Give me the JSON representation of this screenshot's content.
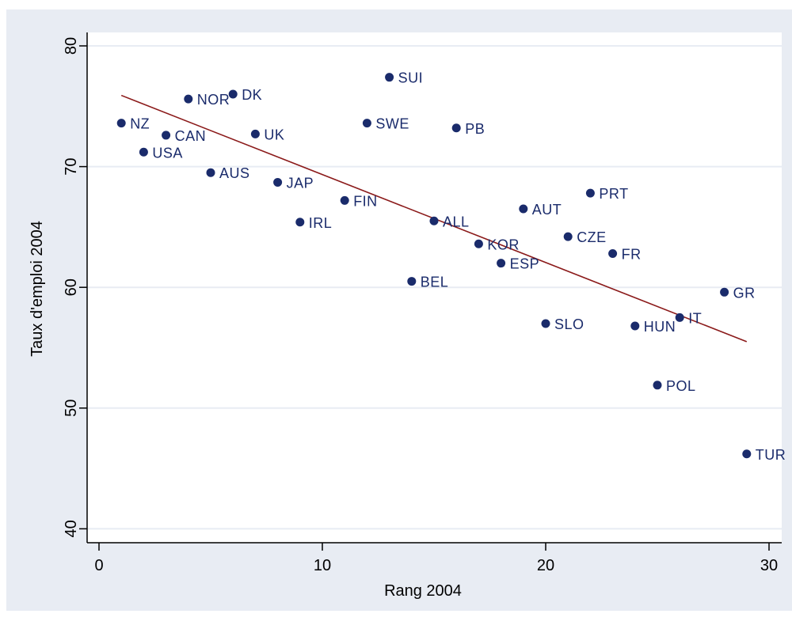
{
  "chart_data": {
    "type": "scatter",
    "title": "",
    "xlabel": "Rang 2004",
    "ylabel": "Taux d'emploi 2004",
    "xlim": [
      -0.5,
      30.5
    ],
    "ylim": [
      39,
      81
    ],
    "xticks": [
      0,
      10,
      20,
      30
    ],
    "yticks": [
      40,
      50,
      60,
      70,
      80
    ],
    "grid": "horizontal",
    "colors": {
      "background": "#e8ecf3",
      "plot": "#ffffff",
      "points": "#1a2b6b",
      "fit_line": "#8b1a1a",
      "grid": "#e8ecf3"
    },
    "points": [
      {
        "label": "NZ",
        "x": 1,
        "y": 73.6
      },
      {
        "label": "USA",
        "x": 2,
        "y": 71.2
      },
      {
        "label": "CAN",
        "x": 3,
        "y": 72.6
      },
      {
        "label": "NOR",
        "x": 4,
        "y": 75.6
      },
      {
        "label": "AUS",
        "x": 5,
        "y": 69.5
      },
      {
        "label": "DK",
        "x": 6,
        "y": 76.0
      },
      {
        "label": "UK",
        "x": 7,
        "y": 72.7
      },
      {
        "label": "JAP",
        "x": 8,
        "y": 68.7
      },
      {
        "label": "IRL",
        "x": 9,
        "y": 65.4
      },
      {
        "label": "FIN",
        "x": 11,
        "y": 67.2
      },
      {
        "label": "SWE",
        "x": 12,
        "y": 73.6
      },
      {
        "label": "SUI",
        "x": 13,
        "y": 77.4
      },
      {
        "label": "BEL",
        "x": 14,
        "y": 60.5
      },
      {
        "label": "ALL",
        "x": 15,
        "y": 65.5
      },
      {
        "label": "PB",
        "x": 16,
        "y": 73.2
      },
      {
        "label": "KOR",
        "x": 17,
        "y": 63.6
      },
      {
        "label": "ESP",
        "x": 18,
        "y": 62.0
      },
      {
        "label": "AUT",
        "x": 19,
        "y": 66.5
      },
      {
        "label": "SLO",
        "x": 20,
        "y": 57.0
      },
      {
        "label": "CZE",
        "x": 21,
        "y": 64.2
      },
      {
        "label": "PRT",
        "x": 22,
        "y": 67.8
      },
      {
        "label": "FR",
        "x": 23,
        "y": 62.8
      },
      {
        "label": "HUN",
        "x": 24,
        "y": 56.8
      },
      {
        "label": "POL",
        "x": 25,
        "y": 51.9
      },
      {
        "label": "IT",
        "x": 26,
        "y": 57.5
      },
      {
        "label": "GR",
        "x": 28,
        "y": 59.6
      },
      {
        "label": "TUR",
        "x": 29,
        "y": 46.2
      }
    ],
    "fit_line": {
      "x": [
        1,
        29
      ],
      "y": [
        75.9,
        55.5
      ]
    }
  }
}
